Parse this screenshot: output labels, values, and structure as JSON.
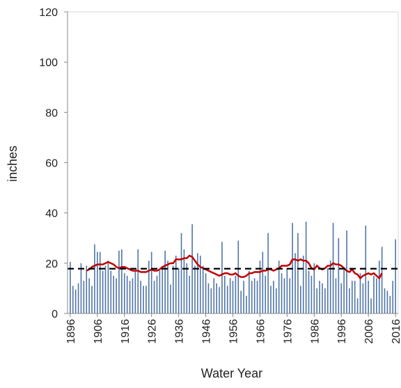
{
  "chart_data": {
    "type": "bar",
    "x_label": "Water Year",
    "y_label": "inches",
    "xlim": [
      1895,
      2017
    ],
    "ylim": [
      0,
      120
    ],
    "xticks": [
      1896,
      1906,
      1916,
      1926,
      1936,
      1946,
      1956,
      1966,
      1976,
      1986,
      1996,
      2006,
      2016
    ],
    "yticks": [
      0,
      20,
      40,
      60,
      80,
      100,
      120
    ],
    "grid": false,
    "x": [
      1896,
      1897,
      1898,
      1899,
      1900,
      1901,
      1902,
      1903,
      1904,
      1905,
      1906,
      1907,
      1908,
      1909,
      1910,
      1911,
      1912,
      1913,
      1914,
      1915,
      1916,
      1917,
      1918,
      1919,
      1920,
      1921,
      1922,
      1923,
      1924,
      1925,
      1926,
      1927,
      1928,
      1929,
      1930,
      1931,
      1932,
      1933,
      1934,
      1935,
      1936,
      1937,
      1938,
      1939,
      1940,
      1941,
      1942,
      1943,
      1944,
      1945,
      1946,
      1947,
      1948,
      1949,
      1950,
      1951,
      1952,
      1953,
      1954,
      1955,
      1956,
      1957,
      1958,
      1959,
      1960,
      1961,
      1962,
      1963,
      1964,
      1965,
      1966,
      1967,
      1968,
      1969,
      1970,
      1971,
      1972,
      1973,
      1974,
      1975,
      1976,
      1977,
      1978,
      1979,
      1980,
      1981,
      1982,
      1983,
      1984,
      1985,
      1986,
      1987,
      1988,
      1989,
      1990,
      1991,
      1992,
      1993,
      1994,
      1995,
      1996,
      1997,
      1998,
      1999,
      2000,
      2001,
      2002,
      2003,
      2004,
      2005,
      2006,
      2007,
      2008,
      2009,
      2010,
      2011,
      2012,
      2013,
      2014,
      2015,
      2016
    ],
    "series": [
      {
        "type": "bar",
        "color": "#4f74a8",
        "values": [
          20.5,
          11,
          9.5,
          12,
          20,
          13,
          19,
          14,
          11,
          27.5,
          24.5,
          24.5,
          17,
          19,
          21,
          17,
          15,
          14,
          25,
          25.5,
          16,
          15,
          13,
          14,
          17,
          25.5,
          13,
          11,
          11,
          21,
          24.5,
          13,
          15,
          17,
          18,
          25,
          21,
          11.5,
          19,
          23,
          18,
          32,
          25.5,
          20,
          15,
          35.5,
          19,
          24,
          23,
          19,
          16,
          12,
          10,
          14,
          12,
          10.5,
          28.5,
          15,
          11,
          14,
          13,
          15,
          29,
          9,
          13,
          7,
          17,
          13,
          14,
          13,
          21,
          24.5,
          15,
          32,
          11,
          13,
          10,
          21,
          16,
          14,
          18,
          14,
          36,
          24,
          32,
          11,
          23,
          36.5,
          17,
          15,
          20,
          10,
          13,
          12,
          10,
          18,
          21,
          36,
          14,
          30,
          12,
          18,
          33,
          10,
          13,
          13,
          6,
          16,
          12,
          35,
          13,
          6,
          15,
          14,
          21,
          26.5,
          10,
          9,
          7,
          13,
          29.5
        ]
      },
      {
        "type": "line",
        "color": "#c00000",
        "values": [
          null,
          null,
          null,
          null,
          null,
          null,
          17,
          17.5,
          18.5,
          19,
          19.5,
          19.5,
          19.5,
          20,
          20.5,
          20,
          19.5,
          18.5,
          18,
          18.5,
          18.5,
          18,
          17.5,
          17,
          17,
          17,
          16.5,
          16.5,
          16.5,
          17,
          17.5,
          17,
          17,
          17.5,
          18.5,
          19,
          19.5,
          20,
          20,
          21.5,
          21.5,
          21.5,
          22,
          22,
          23,
          22.5,
          21,
          19.5,
          18.5,
          18,
          17.5,
          17,
          16.5,
          16,
          15.5,
          15,
          15.5,
          16,
          16,
          15.5,
          15.5,
          16,
          15,
          14.5,
          14.5,
          15,
          16,
          16,
          16.5,
          16.5,
          16.5,
          17,
          17,
          17.5,
          17.5,
          17,
          17.5,
          18,
          19,
          19,
          19,
          19.5,
          21.5,
          21.5,
          21,
          21.5,
          21,
          21,
          20,
          18,
          17.5,
          19,
          18,
          17.5,
          18,
          19,
          19,
          20,
          19.5,
          19.5,
          19,
          18,
          17,
          16.5,
          17.5,
          16,
          15.5,
          14,
          15,
          15.5,
          16,
          15.5,
          16,
          15,
          14,
          16,
          null,
          null,
          null,
          null,
          null
        ]
      }
    ],
    "reference_line": {
      "value": 17.8,
      "color": "#000000"
    }
  }
}
